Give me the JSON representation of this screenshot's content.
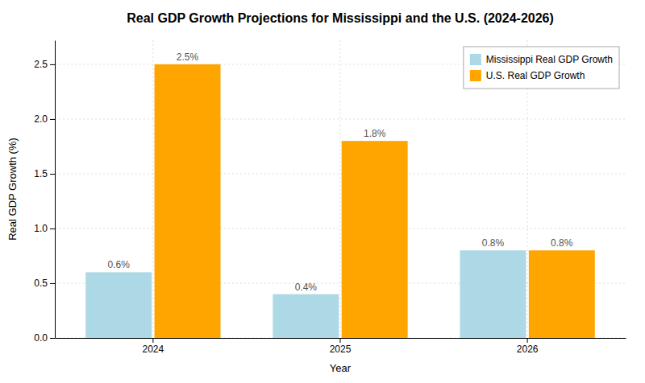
{
  "chart_data": {
    "type": "bar",
    "title": "Real GDP Growth Projections for Mississippi and the U.S. (2024-2026)",
    "xlabel": "Year",
    "ylabel": "Real GDP Growth (%)",
    "categories": [
      "2024",
      "2025",
      "2026"
    ],
    "series": [
      {
        "name": "Mississippi Real GDP Growth",
        "color": "#add8e6",
        "values": [
          0.6,
          0.4,
          0.8
        ],
        "value_labels": [
          "0.6%",
          "0.4%",
          "0.8%"
        ]
      },
      {
        "name": "U.S. Real GDP Growth",
        "color": "#FFA500",
        "values": [
          2.5,
          1.8,
          0.8
        ],
        "value_labels": [
          "2.5%",
          "1.8%",
          "0.8%"
        ]
      }
    ],
    "ylim": [
      0,
      2.72
    ],
    "yticks": [
      {
        "value": 0.0,
        "label": "0.0"
      },
      0.5,
      {
        "value": 1.0,
        "label": "1.0"
      },
      1.5,
      {
        "value": 2.0,
        "label": "2.0"
      },
      2.5
    ],
    "grid": true,
    "legend": "upper right",
    "data_labels": true
  }
}
